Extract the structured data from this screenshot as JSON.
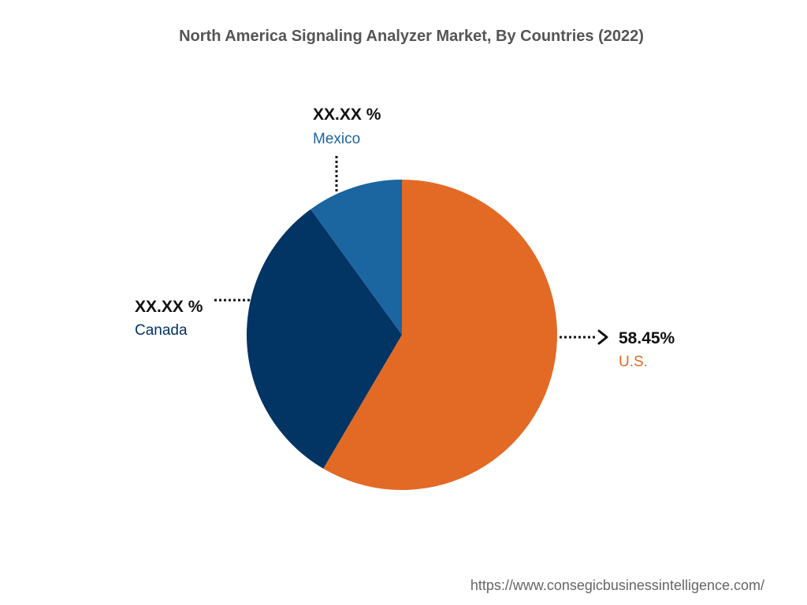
{
  "chart_data": {
    "type": "pie",
    "title": "North America Signaling Analyzer Market, By Countries (2022)",
    "slices": [
      {
        "name": "U.S.",
        "value_label": "58.45%",
        "value": 58.45,
        "color": "#e36a25"
      },
      {
        "name": "Canada",
        "value_label": "XX.XX %",
        "value": 31.55,
        "color": "#023464"
      },
      {
        "name": "Mexico",
        "value_label": "XX.XX %",
        "value": 10.0,
        "color": "#1b65a0"
      }
    ],
    "legend": "none"
  },
  "source_url": "https://www.consegicbusinessintelligence.com/",
  "colors": {
    "title": "#555555",
    "value_text": "#111111",
    "leader_line": "#111111",
    "source_text": "#666666"
  }
}
